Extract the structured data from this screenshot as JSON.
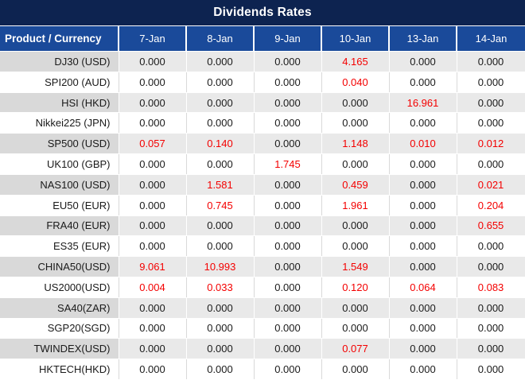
{
  "chart_data": {
    "type": "table",
    "title": "Dividends Rates",
    "columns": [
      "Product / Currency",
      "7-Jan",
      "8-Jan",
      "9-Jan",
      "10-Jan",
      "13-Jan",
      "14-Jan"
    ],
    "rows": [
      {
        "product": "DJ30 (USD)",
        "values": [
          "0.000",
          "0.000",
          "0.000",
          "4.165",
          "0.000",
          "0.000"
        ],
        "red_indexes": [
          3
        ]
      },
      {
        "product": "SPI200 (AUD)",
        "values": [
          "0.000",
          "0.000",
          "0.000",
          "0.040",
          "0.000",
          "0.000"
        ],
        "red_indexes": [
          3
        ]
      },
      {
        "product": "HSI (HKD)",
        "values": [
          "0.000",
          "0.000",
          "0.000",
          "0.000",
          "16.961",
          "0.000"
        ],
        "red_indexes": [
          4
        ]
      },
      {
        "product": "Nikkei225 (JPN)",
        "values": [
          "0.000",
          "0.000",
          "0.000",
          "0.000",
          "0.000",
          "0.000"
        ],
        "red_indexes": []
      },
      {
        "product": "SP500 (USD)",
        "values": [
          "0.057",
          "0.140",
          "0.000",
          "1.148",
          "0.010",
          "0.012"
        ],
        "red_indexes": [
          0,
          1,
          3,
          4,
          5
        ]
      },
      {
        "product": "UK100 (GBP)",
        "values": [
          "0.000",
          "0.000",
          "1.745",
          "0.000",
          "0.000",
          "0.000"
        ],
        "red_indexes": [
          2
        ]
      },
      {
        "product": "NAS100 (USD)",
        "values": [
          "0.000",
          "1.581",
          "0.000",
          "0.459",
          "0.000",
          "0.021"
        ],
        "red_indexes": [
          1,
          3,
          5
        ]
      },
      {
        "product": "EU50 (EUR)",
        "values": [
          "0.000",
          "0.745",
          "0.000",
          "1.961",
          "0.000",
          "0.204"
        ],
        "red_indexes": [
          1,
          3,
          5
        ]
      },
      {
        "product": "FRA40 (EUR)",
        "values": [
          "0.000",
          "0.000",
          "0.000",
          "0.000",
          "0.000",
          "0.655"
        ],
        "red_indexes": [
          5
        ]
      },
      {
        "product": "ES35 (EUR)",
        "values": [
          "0.000",
          "0.000",
          "0.000",
          "0.000",
          "0.000",
          "0.000"
        ],
        "red_indexes": []
      },
      {
        "product": "CHINA50(USD)",
        "values": [
          "9.061",
          "10.993",
          "0.000",
          "1.549",
          "0.000",
          "0.000"
        ],
        "red_indexes": [
          0,
          1,
          3
        ]
      },
      {
        "product": "US2000(USD)",
        "values": [
          "0.004",
          "0.033",
          "0.000",
          "0.120",
          "0.064",
          "0.083"
        ],
        "red_indexes": [
          0,
          1,
          3,
          4,
          5
        ]
      },
      {
        "product": "SA40(ZAR)",
        "values": [
          "0.000",
          "0.000",
          "0.000",
          "0.000",
          "0.000",
          "0.000"
        ],
        "red_indexes": []
      },
      {
        "product": "SGP20(SGD)",
        "values": [
          "0.000",
          "0.000",
          "0.000",
          "0.000",
          "0.000",
          "0.000"
        ],
        "red_indexes": []
      },
      {
        "product": "TWINDEX(USD)",
        "values": [
          "0.000",
          "0.000",
          "0.000",
          "0.077",
          "0.000",
          "0.000"
        ],
        "red_indexes": [
          3
        ]
      },
      {
        "product": "HKTECH(HKD)",
        "values": [
          "0.000",
          "0.000",
          "0.000",
          "0.000",
          "0.000",
          "0.000"
        ],
        "red_indexes": []
      }
    ]
  },
  "colors": {
    "title_bg": "#0D2350",
    "header_bg": "#1A4A9A",
    "header_text": "#FFFFFF",
    "stripe_label_bg": "#D9D9D9",
    "stripe_value_bg": "#E9E9E9",
    "grid_line": "#D9D9D9",
    "value_text": "#1A1A1A",
    "highlight_red": "#F40000"
  }
}
